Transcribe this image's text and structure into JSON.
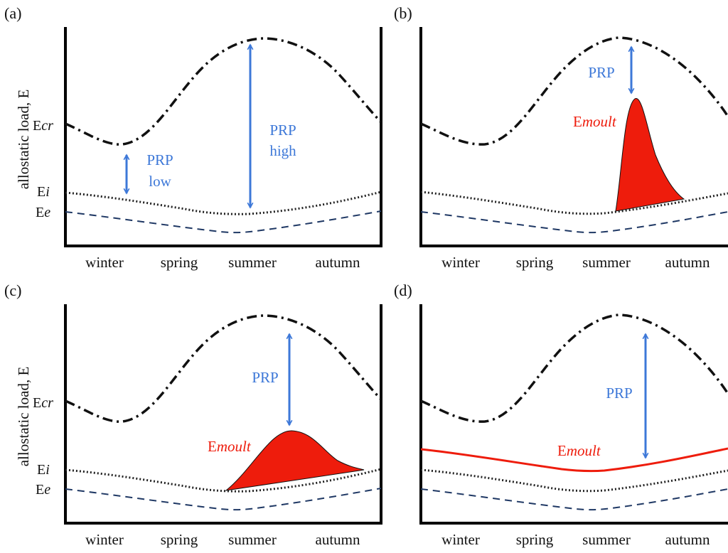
{
  "y_axis_label": "allostatic load, E",
  "seasons": [
    "winter",
    "spring",
    "summer",
    "autumn"
  ],
  "level_labels": {
    "ecr_prefix": "E",
    "ecr_suffix": "cr",
    "ei_prefix": "E",
    "ei_suffix": "i",
    "ee_prefix": "E",
    "ee_suffix": "e"
  },
  "colors": {
    "prp_arrow": "#3d78d8",
    "moult": "#ee1c0c",
    "existence": "#1f3864",
    "curves": "#111111"
  },
  "panels": [
    {
      "id": "a",
      "label": "(a)",
      "annotations": [
        {
          "line1": "PRP",
          "line2": "low"
        },
        {
          "line1": "PRP",
          "line2": "high"
        }
      ]
    },
    {
      "id": "b",
      "label": "(b)",
      "prp": "PRP",
      "moult_prefix": "E",
      "moult_suffix": "moult"
    },
    {
      "id": "c",
      "label": "(c)",
      "prp": "PRP",
      "moult_prefix": "E",
      "moult_suffix": "moult"
    },
    {
      "id": "d",
      "label": "(d)",
      "prp": "PRP",
      "moult_prefix": "E",
      "moult_suffix": "moult"
    }
  ]
}
